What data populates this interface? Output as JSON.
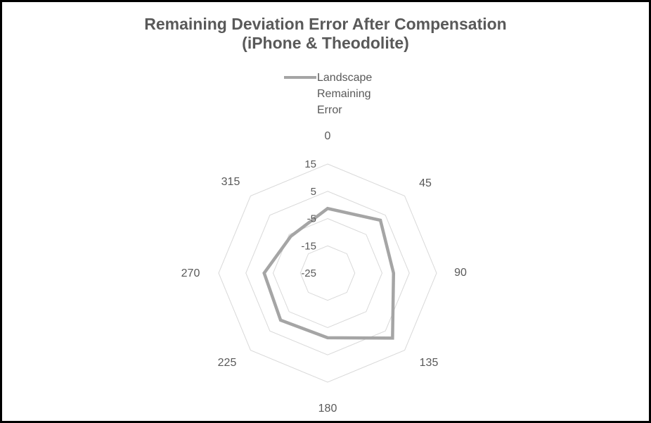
{
  "title": {
    "line1": "Remaining Deviation Error After Compensation",
    "line2": "(iPhone & Theodolite)",
    "color": "#595959"
  },
  "legend": {
    "label": "Landscape Remaining Error",
    "swatch_color": "#a5a5a5"
  },
  "chart_data": {
    "type": "radar",
    "title": "Remaining Deviation Error After Compensation (iPhone & Theodolite)",
    "categories": [
      "0",
      "45",
      "90",
      "135",
      "180",
      "225",
      "270",
      "315"
    ],
    "series": [
      {
        "name": "Landscape Remaining Error",
        "values": [
          -1.3,
          2.4,
          -0.8,
          8.7,
          -1.3,
          -0.6,
          -1.7,
          -5.9
        ],
        "color": "#a5a5a5",
        "line_width": 4.5
      }
    ],
    "radial_axis": {
      "min": -25,
      "max": 15,
      "tick_step": 10,
      "tick_values": [
        15,
        5,
        -5,
        -15,
        -25
      ],
      "tick_labels": [
        "15",
        "5",
        "-5",
        "-15",
        "-25"
      ],
      "ring_values": [
        -15,
        -5,
        5,
        15
      ],
      "label_color": "#595959"
    },
    "grid": {
      "shape": "octagon",
      "color": "#d9d9d9",
      "spokes": false
    },
    "legend_position": "top",
    "category_label_color": "#595959",
    "background": "#ffffff"
  }
}
